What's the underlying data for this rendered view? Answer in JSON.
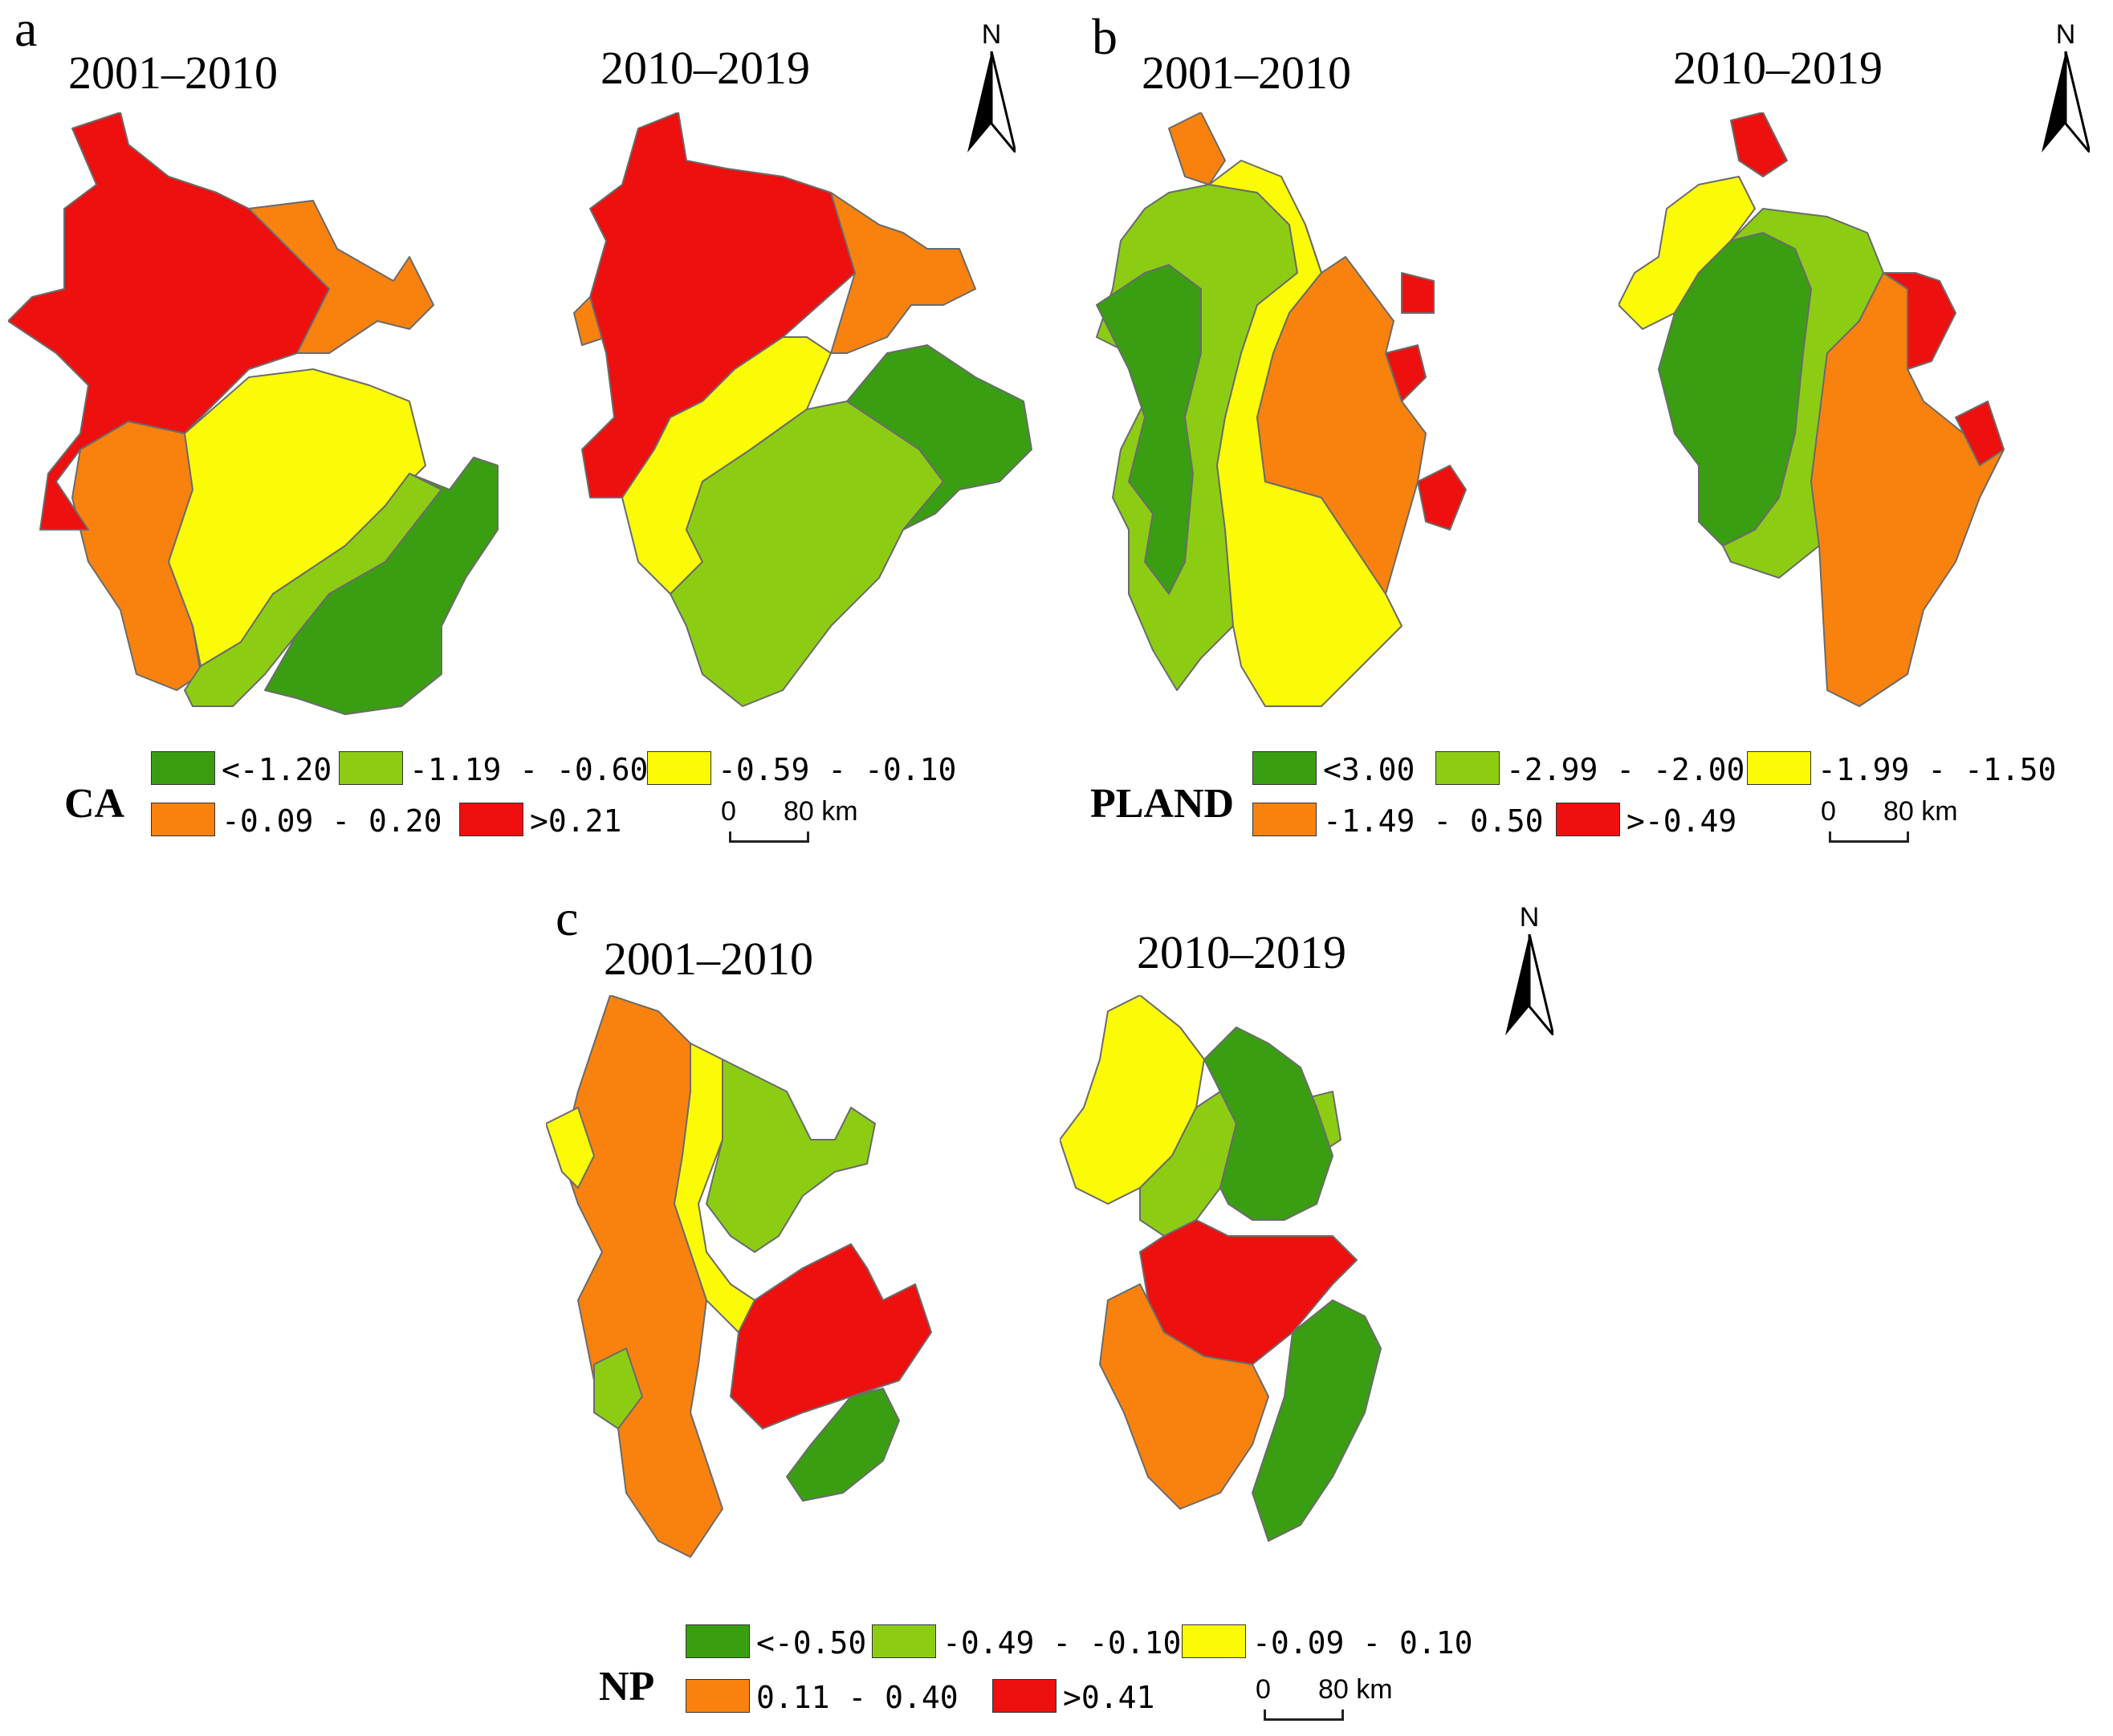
{
  "colors": {
    "dark_green": "#3a9e12",
    "light_green": "#8ccd14",
    "yellow": "#fbfb05",
    "orange": "#f9820f",
    "red": "#ee0f0f",
    "border": "#6b6b6b"
  },
  "panels": {
    "a": {
      "letter": "a",
      "metric": "CA",
      "period_1": "2001–2010",
      "period_2": "2010–2019",
      "north": "N",
      "scale_zero": "0",
      "scale_end": "80 km",
      "legend": [
        "<-1.20",
        "-1.19 - -0.60",
        "-0.59 - -0.10",
        "-0.09 - 0.20",
        ">0.21"
      ],
      "map1": [
        "orange",
        "red",
        "yellow",
        "light_green",
        "dark_green"
      ],
      "map2": [
        "orange",
        "red",
        "yellow",
        "light_green",
        "dark_green"
      ]
    },
    "b": {
      "letter": "b",
      "metric": "PLAND",
      "period_1": "2001–2010",
      "period_2": "2010–2019",
      "north": "N",
      "scale_zero": "0",
      "scale_end": "80 km",
      "legend": [
        "<3.00",
        "-2.99 - -2.00",
        "-1.99 - -1.50",
        "-1.49 - 0.50",
        ">-0.49"
      ],
      "map1": [
        "orange",
        "light_green",
        "dark_green",
        "yellow",
        "orange",
        "red"
      ],
      "map2": [
        "red",
        "yellow",
        "dark_green",
        "light_green",
        "orange",
        "red"
      ]
    },
    "c": {
      "letter": "c",
      "metric": "NP",
      "period_1": "2001–2010",
      "period_2": "2010–2019",
      "north": "N",
      "scale_zero": "0",
      "scale_end": "80 km",
      "legend": [
        "<-0.50",
        "-0.49 - -0.10",
        "-0.09 - 0.10",
        "0.11 - 0.40",
        ">0.41"
      ],
      "map1": [
        "orange",
        "yellow",
        "light_green",
        "red",
        "dark_green"
      ],
      "map2": [
        "yellow",
        "light_green",
        "dark_green",
        "red",
        "orange"
      ]
    }
  }
}
